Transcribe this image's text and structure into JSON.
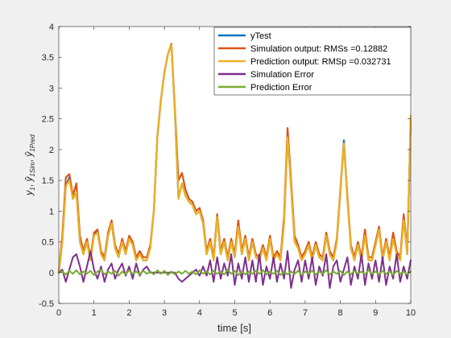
{
  "chart_data": {
    "type": "line",
    "xlabel": "time [s]",
    "ylabel_parts": {
      "y1": "y",
      "y1_sub": "1",
      "sep1": ", ",
      "yhat_sim": "ŷ",
      "yhat_sim_sub": "1Sim",
      "sep2": ", ",
      "yhat_pred": "ŷ",
      "yhat_pred_sub": "1Pred"
    },
    "xlim": [
      0,
      10
    ],
    "ylim": [
      -0.5,
      4
    ],
    "xticks": [
      0,
      1,
      2,
      3,
      4,
      5,
      6,
      7,
      8,
      9,
      10
    ],
    "yticks": [
      -0.5,
      0,
      0.5,
      1,
      1.5,
      2,
      2.5,
      3,
      3.5,
      4
    ],
    "ytick_labels": [
      "-0.5",
      "0",
      "0.5",
      "1",
      "1.5",
      "2",
      "2.5",
      "3",
      "3.5",
      "4"
    ],
    "xtick_labels": [
      "0",
      "1",
      "2",
      "3",
      "4",
      "5",
      "6",
      "7",
      "8",
      "9",
      "10"
    ],
    "legend": {
      "placement": "top-right",
      "entries": [
        {
          "label": "yTest",
          "color": "#0072bd"
        },
        {
          "label": "Simulation output: RMSs =0.12882",
          "color": "#d95319"
        },
        {
          "label": "Prediction output: RMSp =0.032731",
          "color": "#edb120"
        },
        {
          "label": "Simulation Error",
          "color": "#7e2f8e"
        },
        {
          "label": "Prediction Error",
          "color": "#77ac30"
        }
      ]
    },
    "series": [
      {
        "name": "yTest",
        "color": "#0072bd",
        "x": [
          0,
          0.1,
          0.2,
          0.3,
          0.4,
          0.5,
          0.6,
          0.7,
          0.8,
          0.9,
          1.0,
          1.1,
          1.2,
          1.3,
          1.4,
          1.5,
          1.6,
          1.7,
          1.8,
          1.9,
          2.0,
          2.1,
          2.2,
          2.3,
          2.4,
          2.5,
          2.6,
          2.7,
          2.8,
          2.9,
          3.0,
          3.1,
          3.2,
          3.3,
          3.4,
          3.5,
          3.6,
          3.7,
          3.8,
          3.9,
          4.0,
          4.1,
          4.2,
          4.3,
          4.4,
          4.5,
          4.6,
          4.7,
          4.8,
          4.9,
          5.0,
          5.1,
          5.2,
          5.3,
          5.4,
          5.5,
          5.6,
          5.7,
          5.8,
          5.9,
          6.0,
          6.1,
          6.2,
          6.3,
          6.4,
          6.5,
          6.6,
          6.7,
          6.8,
          6.9,
          7.0,
          7.1,
          7.2,
          7.3,
          7.4,
          7.5,
          7.6,
          7.7,
          7.8,
          7.9,
          8.0,
          8.1,
          8.2,
          8.3,
          8.4,
          8.5,
          8.6,
          8.7,
          8.8,
          8.9,
          9.0,
          9.1,
          9.2,
          9.3,
          9.4,
          9.5,
          9.6,
          9.7,
          9.8,
          9.9,
          10.0
        ],
        "y": [
          0.0,
          0.5,
          1.4,
          1.55,
          1.2,
          1.3,
          0.5,
          0.3,
          0.5,
          0.2,
          0.6,
          0.7,
          0.3,
          0.2,
          0.6,
          0.8,
          0.4,
          0.25,
          0.5,
          0.3,
          0.55,
          0.45,
          0.2,
          0.3,
          0.2,
          0.2,
          0.4,
          1.0,
          2.2,
          2.8,
          3.25,
          3.55,
          3.7,
          2.6,
          1.2,
          1.45,
          1.25,
          1.15,
          1.1,
          0.95,
          1.0,
          0.8,
          0.3,
          0.5,
          0.2,
          0.9,
          0.3,
          0.5,
          0.2,
          0.5,
          0.25,
          0.8,
          0.3,
          0.55,
          0.2,
          0.5,
          0.25,
          0.2,
          0.4,
          0.2,
          0.55,
          0.2,
          0.3,
          0.2,
          0.8,
          2.2,
          1.4,
          0.5,
          0.4,
          0.2,
          0.3,
          0.45,
          0.2,
          0.45,
          0.25,
          0.2,
          0.6,
          0.3,
          0.2,
          0.5,
          1.3,
          2.15,
          1.2,
          0.4,
          0.2,
          0.45,
          0.2,
          0.65,
          0.2,
          0.2,
          0.45,
          0.7,
          0.2,
          0.5,
          0.2,
          0.6,
          0.3,
          0.2,
          0.9,
          0.3,
          2.5
        ]
      },
      {
        "name": "Simulation output: RMSs =0.12882",
        "color": "#d95319",
        "x": [
          0,
          0.1,
          0.2,
          0.3,
          0.4,
          0.5,
          0.6,
          0.7,
          0.8,
          0.9,
          1.0,
          1.1,
          1.2,
          1.3,
          1.4,
          1.5,
          1.6,
          1.7,
          1.8,
          1.9,
          2.0,
          2.1,
          2.2,
          2.3,
          2.4,
          2.5,
          2.6,
          2.7,
          2.8,
          2.9,
          3.0,
          3.1,
          3.2,
          3.3,
          3.4,
          3.5,
          3.6,
          3.7,
          3.8,
          3.9,
          4.0,
          4.1,
          4.2,
          4.3,
          4.4,
          4.5,
          4.6,
          4.7,
          4.8,
          4.9,
          5.0,
          5.1,
          5.2,
          5.3,
          5.4,
          5.5,
          5.6,
          5.7,
          5.8,
          5.9,
          6.0,
          6.1,
          6.2,
          6.3,
          6.4,
          6.5,
          6.6,
          6.7,
          6.8,
          6.9,
          7.0,
          7.1,
          7.2,
          7.3,
          7.4,
          7.5,
          7.6,
          7.7,
          7.8,
          7.9,
          8.0,
          8.1,
          8.2,
          8.3,
          8.4,
          8.5,
          8.6,
          8.7,
          8.8,
          8.9,
          9.0,
          9.1,
          9.2,
          9.3,
          9.4,
          9.5,
          9.6,
          9.7,
          9.8,
          9.9,
          10.0
        ],
        "y": [
          0.0,
          0.6,
          1.55,
          1.6,
          1.25,
          1.45,
          0.6,
          0.35,
          0.55,
          0.25,
          0.65,
          0.7,
          0.35,
          0.25,
          0.65,
          0.85,
          0.45,
          0.3,
          0.55,
          0.35,
          0.6,
          0.5,
          0.25,
          0.35,
          0.25,
          0.25,
          0.45,
          1.0,
          2.2,
          2.8,
          3.25,
          3.55,
          3.72,
          2.65,
          1.5,
          1.62,
          1.35,
          1.2,
          1.15,
          1.0,
          1.05,
          0.85,
          0.35,
          0.55,
          0.25,
          0.95,
          0.35,
          0.55,
          0.25,
          0.55,
          0.3,
          0.85,
          0.35,
          0.6,
          0.25,
          0.55,
          0.3,
          0.25,
          0.45,
          0.25,
          0.6,
          0.25,
          0.35,
          0.25,
          0.9,
          2.35,
          1.5,
          0.6,
          0.45,
          0.25,
          0.35,
          0.5,
          0.25,
          0.5,
          0.3,
          0.25,
          0.65,
          0.35,
          0.25,
          0.55,
          1.35,
          2.1,
          1.25,
          0.45,
          0.25,
          0.5,
          0.25,
          0.7,
          0.25,
          0.25,
          0.5,
          0.75,
          0.25,
          0.55,
          0.25,
          0.65,
          0.35,
          0.25,
          0.95,
          0.35,
          2.45
        ]
      },
      {
        "name": "Prediction output: RMSp =0.032731",
        "color": "#edb120",
        "x": [
          0,
          0.1,
          0.2,
          0.3,
          0.4,
          0.5,
          0.6,
          0.7,
          0.8,
          0.9,
          1.0,
          1.1,
          1.2,
          1.3,
          1.4,
          1.5,
          1.6,
          1.7,
          1.8,
          1.9,
          2.0,
          2.1,
          2.2,
          2.3,
          2.4,
          2.5,
          2.6,
          2.7,
          2.8,
          2.9,
          3.0,
          3.1,
          3.2,
          3.3,
          3.4,
          3.5,
          3.6,
          3.7,
          3.8,
          3.9,
          4.0,
          4.1,
          4.2,
          4.3,
          4.4,
          4.5,
          4.6,
          4.7,
          4.8,
          4.9,
          5.0,
          5.1,
          5.2,
          5.3,
          5.4,
          5.5,
          5.6,
          5.7,
          5.8,
          5.9,
          6.0,
          6.1,
          6.2,
          6.3,
          6.4,
          6.5,
          6.6,
          6.7,
          6.8,
          6.9,
          7.0,
          7.1,
          7.2,
          7.3,
          7.4,
          7.5,
          7.6,
          7.7,
          7.8,
          7.9,
          8.0,
          8.1,
          8.2,
          8.3,
          8.4,
          8.5,
          8.6,
          8.7,
          8.8,
          8.9,
          9.0,
          9.1,
          9.2,
          9.3,
          9.4,
          9.5,
          9.6,
          9.7,
          9.8,
          9.9,
          10.0
        ],
        "y": [
          0.0,
          0.5,
          1.4,
          1.5,
          1.2,
          1.3,
          0.5,
          0.3,
          0.5,
          0.2,
          0.6,
          0.65,
          0.3,
          0.2,
          0.6,
          0.8,
          0.4,
          0.25,
          0.5,
          0.3,
          0.55,
          0.45,
          0.2,
          0.3,
          0.2,
          0.2,
          0.4,
          1.0,
          2.2,
          2.8,
          3.25,
          3.55,
          3.7,
          2.6,
          1.2,
          1.45,
          1.25,
          1.15,
          1.1,
          0.95,
          1.0,
          0.8,
          0.3,
          0.5,
          0.2,
          0.9,
          0.3,
          0.5,
          0.2,
          0.5,
          0.25,
          0.75,
          0.3,
          0.55,
          0.2,
          0.5,
          0.25,
          0.2,
          0.4,
          0.2,
          0.55,
          0.2,
          0.3,
          0.2,
          0.8,
          2.2,
          1.4,
          0.5,
          0.4,
          0.2,
          0.3,
          0.45,
          0.2,
          0.45,
          0.25,
          0.2,
          0.6,
          0.3,
          0.2,
          0.5,
          1.3,
          2.1,
          1.2,
          0.4,
          0.2,
          0.45,
          0.2,
          0.6,
          0.2,
          0.2,
          0.45,
          0.7,
          0.2,
          0.5,
          0.2,
          0.55,
          0.3,
          0.2,
          0.85,
          0.3,
          2.55
        ]
      },
      {
        "name": "Simulation Error",
        "color": "#7e2f8e",
        "x": [
          0,
          0.1,
          0.2,
          0.3,
          0.4,
          0.5,
          0.6,
          0.7,
          0.8,
          0.9,
          1.0,
          1.1,
          1.2,
          1.3,
          1.4,
          1.5,
          1.6,
          1.7,
          1.8,
          1.9,
          2.0,
          2.1,
          2.2,
          2.3,
          2.4,
          2.5,
          2.6,
          2.7,
          2.8,
          2.9,
          3.0,
          3.1,
          3.2,
          3.3,
          3.4,
          3.5,
          3.6,
          3.7,
          3.8,
          3.9,
          4.0,
          4.1,
          4.2,
          4.3,
          4.4,
          4.5,
          4.6,
          4.7,
          4.8,
          4.9,
          5.0,
          5.1,
          5.2,
          5.3,
          5.4,
          5.5,
          5.6,
          5.7,
          5.8,
          5.9,
          6.0,
          6.1,
          6.2,
          6.3,
          6.4,
          6.5,
          6.6,
          6.7,
          6.8,
          6.9,
          7.0,
          7.1,
          7.2,
          7.3,
          7.4,
          7.5,
          7.6,
          7.7,
          7.8,
          7.9,
          8.0,
          8.1,
          8.2,
          8.3,
          8.4,
          8.5,
          8.6,
          8.7,
          8.8,
          8.9,
          9.0,
          9.1,
          9.2,
          9.3,
          9.4,
          9.5,
          9.6,
          9.7,
          9.8,
          9.9,
          10.0
        ],
        "y": [
          0.0,
          0.05,
          -0.15,
          0.05,
          0.25,
          0.3,
          0.1,
          -0.15,
          0.1,
          0.35,
          0.05,
          -0.1,
          0.1,
          -0.15,
          0.05,
          0.15,
          -0.1,
          0.05,
          0.15,
          -0.05,
          0.1,
          -0.1,
          0.15,
          -0.05,
          0.05,
          0.1,
          0.0,
          0.0,
          0.0,
          0.0,
          0.0,
          0.0,
          0.0,
          0.0,
          -0.1,
          -0.15,
          -0.1,
          -0.05,
          0.0,
          0.05,
          -0.05,
          0.1,
          -0.05,
          0.2,
          -0.15,
          0.25,
          -0.1,
          0.15,
          -0.05,
          0.3,
          -0.2,
          0.15,
          -0.1,
          0.25,
          -0.15,
          0.2,
          -0.15,
          0.3,
          -0.2,
          0.1,
          -0.1,
          0.25,
          -0.15,
          0.15,
          -0.1,
          0.35,
          -0.25,
          0.05,
          0.2,
          -0.15,
          0.2,
          -0.1,
          0.25,
          -0.2,
          0.1,
          -0.05,
          0.3,
          -0.25,
          0.1,
          0.2,
          -0.15,
          0.05,
          0.25,
          -0.2,
          0.1,
          -0.1,
          0.3,
          -0.2,
          0.15,
          -0.1,
          0.2,
          -0.15,
          0.25,
          -0.2,
          0.1,
          -0.1,
          0.3,
          -0.15,
          0.1,
          -0.1,
          0.2
        ]
      },
      {
        "name": "Prediction Error",
        "color": "#77ac30",
        "x": [
          0,
          0.1,
          0.2,
          0.3,
          0.4,
          0.5,
          0.6,
          0.7,
          0.8,
          0.9,
          1.0,
          1.1,
          1.2,
          1.3,
          1.4,
          1.5,
          1.6,
          1.7,
          1.8,
          1.9,
          2.0,
          2.1,
          2.2,
          2.3,
          2.4,
          2.5,
          2.6,
          2.7,
          2.8,
          2.9,
          3.0,
          3.1,
          3.2,
          3.3,
          3.4,
          3.5,
          3.6,
          3.7,
          3.8,
          3.9,
          4.0,
          4.1,
          4.2,
          4.3,
          4.4,
          4.5,
          4.6,
          4.7,
          4.8,
          4.9,
          5.0,
          5.1,
          5.2,
          5.3,
          5.4,
          5.5,
          5.6,
          5.7,
          5.8,
          5.9,
          6.0,
          6.1,
          6.2,
          6.3,
          6.4,
          6.5,
          6.6,
          6.7,
          6.8,
          6.9,
          7.0,
          7.1,
          7.2,
          7.3,
          7.4,
          7.5,
          7.6,
          7.7,
          7.8,
          7.9,
          8.0,
          8.1,
          8.2,
          8.3,
          8.4,
          8.5,
          8.6,
          8.7,
          8.8,
          8.9,
          9.0,
          9.1,
          9.2,
          9.3,
          9.4,
          9.5,
          9.6,
          9.7,
          9.8,
          9.9,
          10.0
        ],
        "y": [
          0.0,
          0.02,
          -0.03,
          0.03,
          -0.02,
          0.04,
          -0.03,
          0.02,
          -0.02,
          0.03,
          -0.04,
          0.02,
          0.05,
          -0.03,
          0.02,
          -0.02,
          0.03,
          -0.05,
          0.02,
          -0.03,
          0.04,
          -0.02,
          0.02,
          -0.03,
          0.03,
          -0.02,
          0.02,
          -0.03,
          0.04,
          -0.02,
          0.03,
          -0.04,
          0.02,
          -0.03,
          0.02,
          -0.02,
          0.03,
          -0.02,
          0.02,
          -0.03,
          0.04,
          -0.02,
          0.02,
          -0.03,
          0.03,
          -0.02,
          0.02,
          -0.03,
          0.05,
          -0.02,
          0.03,
          -0.04,
          0.02,
          -0.03,
          0.02,
          -0.02,
          0.03,
          -0.02,
          0.04,
          -0.03,
          0.02,
          -0.02,
          0.03,
          -0.04,
          0.02,
          -0.03,
          0.02,
          -0.02,
          0.03,
          -0.04,
          0.02,
          -0.02,
          0.03,
          -0.03,
          0.02,
          -0.02,
          0.04,
          -0.03,
          0.02,
          -0.02,
          0.03,
          -0.04,
          0.02,
          -0.03,
          0.03,
          -0.02,
          0.02,
          -0.03,
          0.04,
          -0.02,
          0.02,
          -0.03,
          0.03,
          -0.02,
          0.02,
          -0.04,
          0.03,
          -0.02,
          0.02,
          -0.03,
          0.02
        ]
      }
    ]
  }
}
